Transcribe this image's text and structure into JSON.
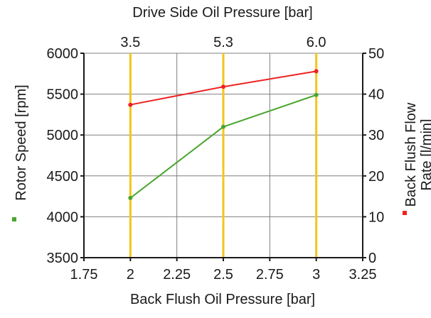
{
  "chart_data": {
    "type": "line",
    "title": "",
    "xlabel": "Back Flush Oil Pressure [bar]",
    "xlim": [
      1.75,
      3.25
    ],
    "x_ticks": [
      "1.75",
      "2",
      "2.25",
      "2.5",
      "2.75",
      "3",
      "3.25"
    ],
    "x_tick_values": [
      1.75,
      2,
      2.25,
      2.5,
      2.75,
      3,
      3.25
    ],
    "x_top_label": "Drive Side Oil Pressure [bar]",
    "x_top_ticks": [
      {
        "x": 2,
        "label": "3.5"
      },
      {
        "x": 2.5,
        "label": "5.3"
      },
      {
        "x": 3,
        "label": "6.0"
      }
    ],
    "ylabel": "Rotor Speed [rpm]",
    "ylim": [
      3500,
      6000
    ],
    "y_ticks": [
      "3500",
      "4000",
      "4500",
      "5000",
      "5500",
      "6000"
    ],
    "y_tick_values": [
      3500,
      4000,
      4500,
      5000,
      5500,
      6000
    ],
    "y2label_lines": [
      "Back Flush Flow",
      "Rate [l/min]"
    ],
    "y2lim": [
      0,
      50
    ],
    "y2_ticks": [
      "0",
      "10",
      "20",
      "30",
      "40",
      "50"
    ],
    "y2_tick_values": [
      0,
      10,
      20,
      30,
      40,
      50
    ],
    "grid": true,
    "series": [
      {
        "axis": "left",
        "color": "#4aa52e",
        "x": [
          2,
          2.5,
          3
        ],
        "values": [
          4230,
          5100,
          5490
        ]
      },
      {
        "axis": "right",
        "color": "#ee2222",
        "x": [
          2,
          2.5,
          3
        ],
        "values": [
          37.4,
          41.8,
          45.6
        ]
      }
    ],
    "highlight_color": "#f5c518",
    "axis_color": "#1a1a1a",
    "grid_color": "#7f7f7f"
  }
}
